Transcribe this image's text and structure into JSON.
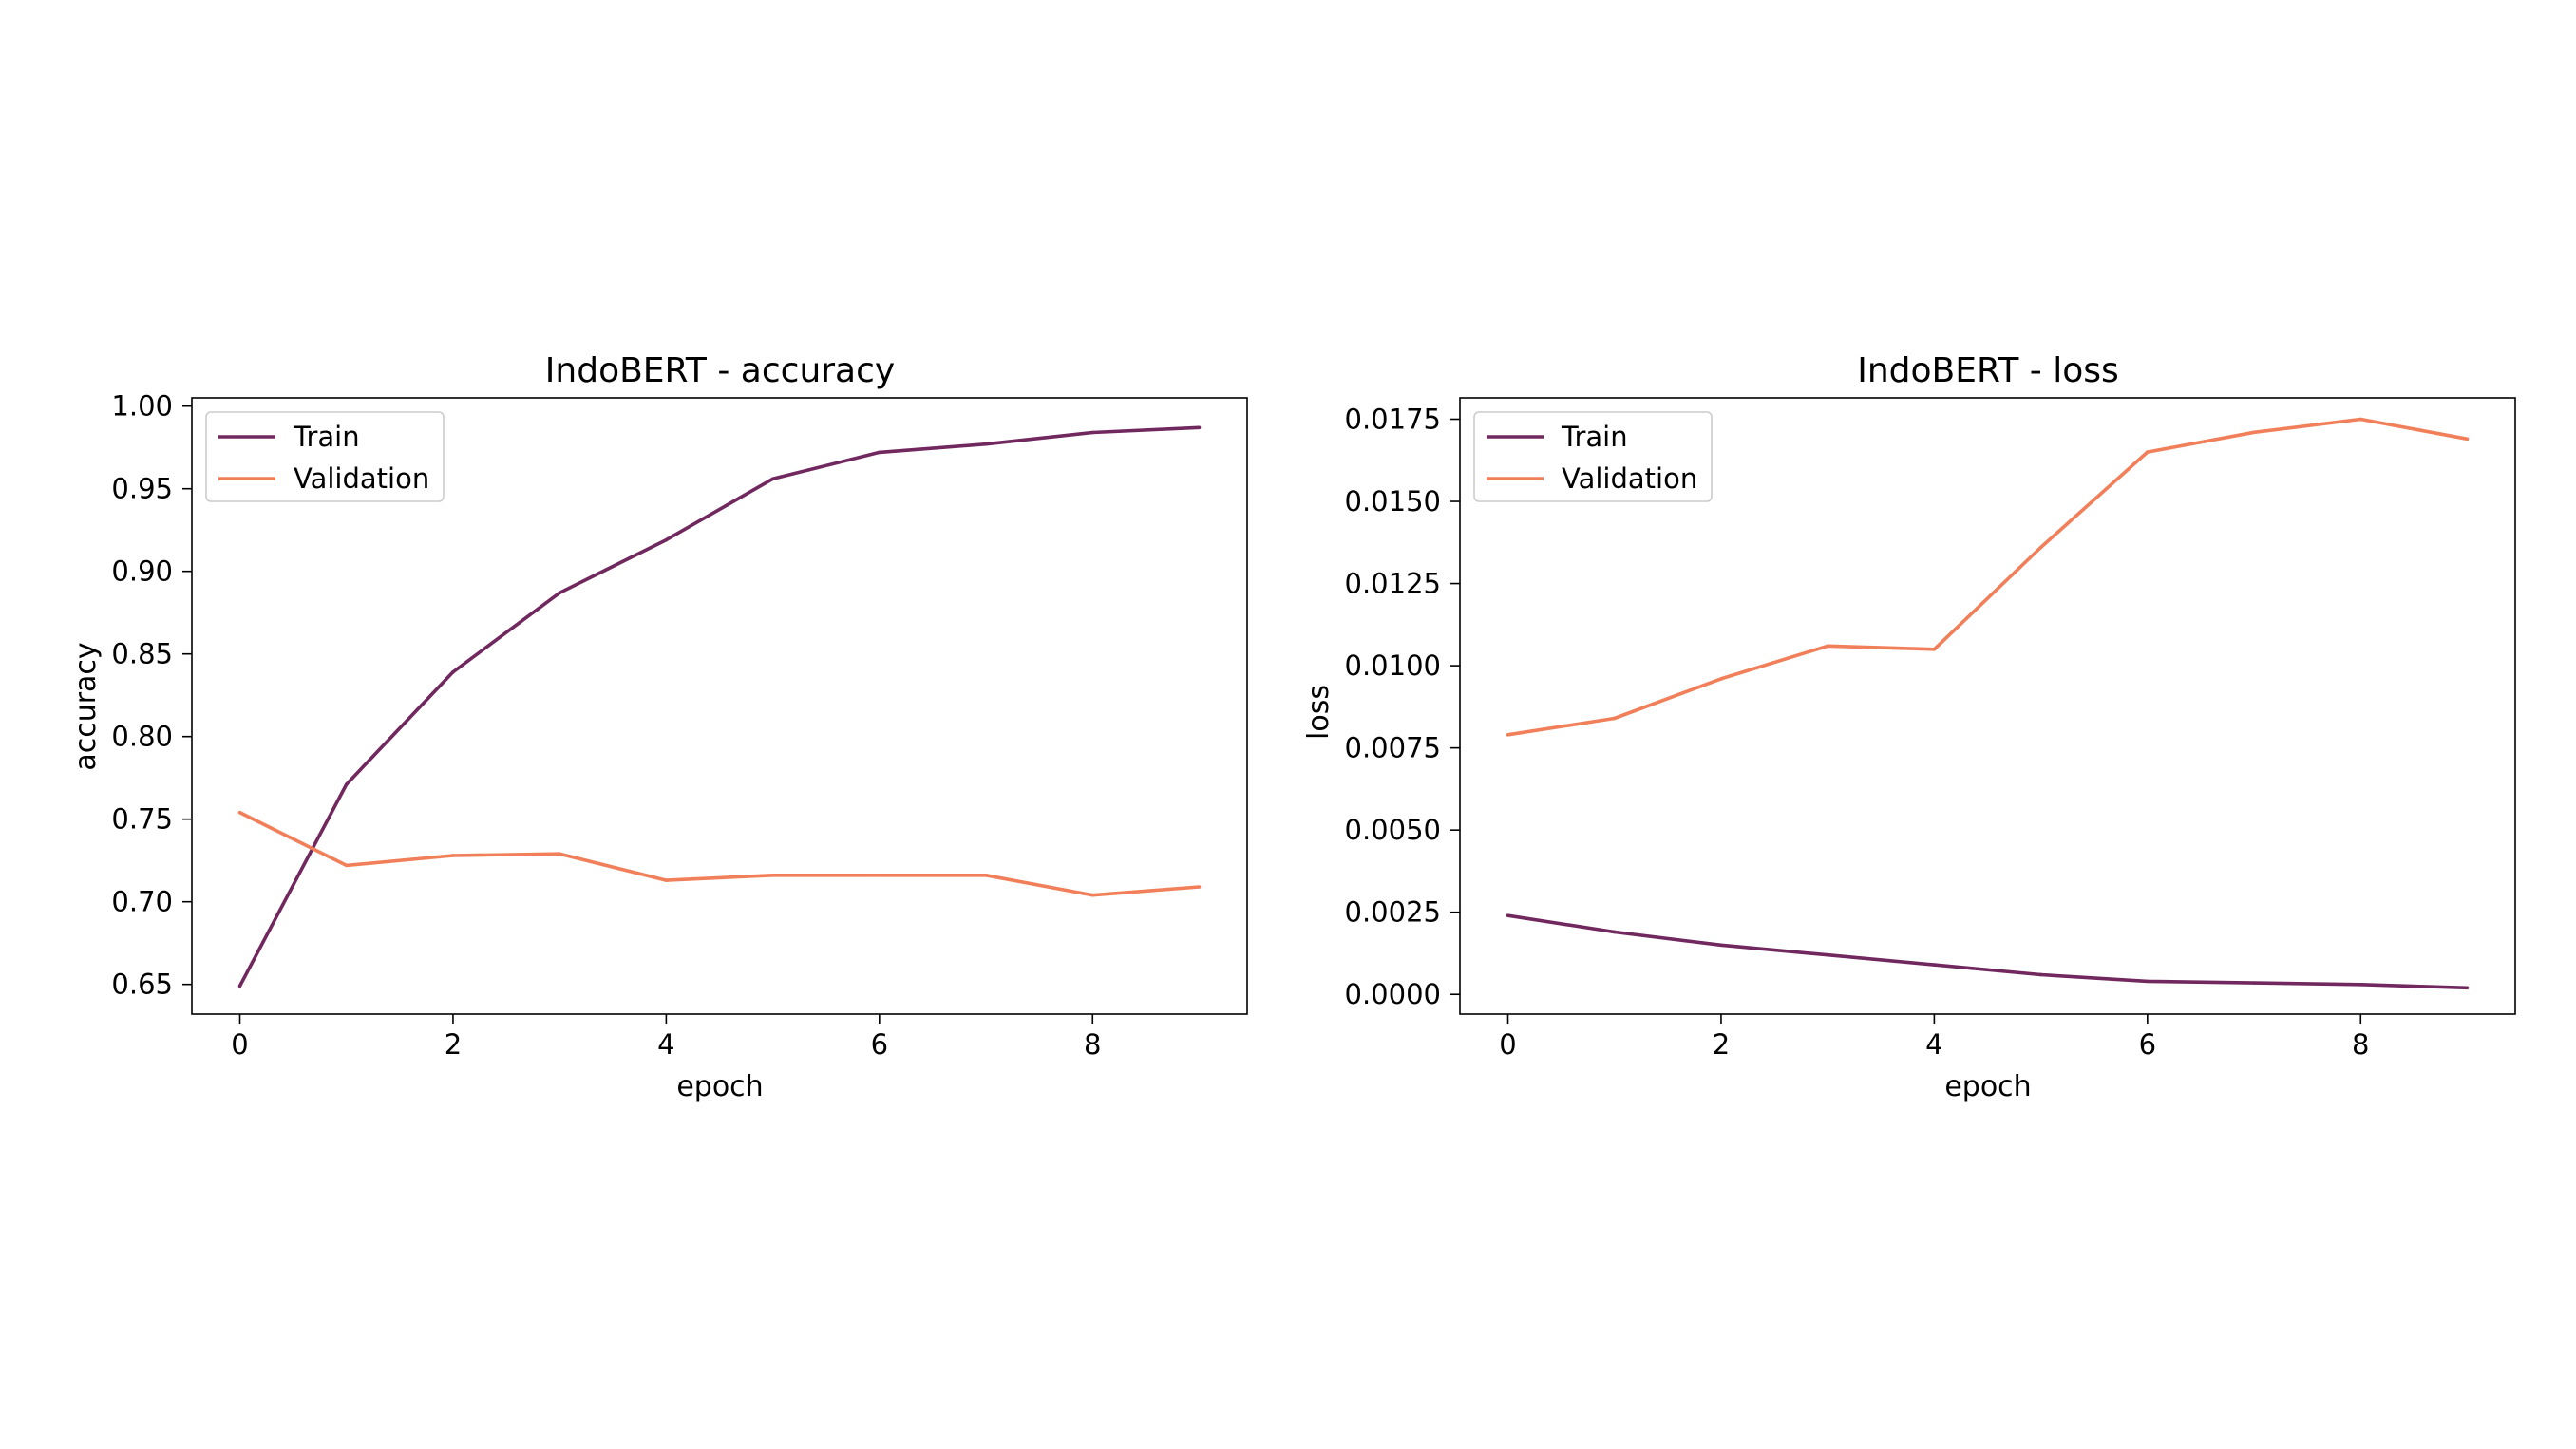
{
  "chart_data": [
    {
      "type": "line",
      "title": "IndoBERT - accuracy",
      "xlabel": "epoch",
      "ylabel": "accuracy",
      "x": [
        0,
        1,
        2,
        3,
        4,
        5,
        6,
        7,
        8,
        9
      ],
      "xlim": [
        -0.45,
        9.45
      ],
      "ylim": [
        0.632,
        1.005
      ],
      "xticks": [
        0,
        2,
        4,
        6,
        8
      ],
      "yticks": [
        0.65,
        0.7,
        0.75,
        0.8,
        0.85,
        0.9,
        0.95,
        1.0
      ],
      "xtick_labels": [
        "0",
        "2",
        "4",
        "6",
        "8"
      ],
      "ytick_labels": [
        "0.65",
        "0.70",
        "0.75",
        "0.80",
        "0.85",
        "0.90",
        "0.95",
        "1.00"
      ],
      "grid": false,
      "legend_position": "upper-left",
      "series": [
        {
          "name": "Train",
          "color": "#70285e",
          "values": [
            0.649,
            0.771,
            0.839,
            0.887,
            0.919,
            0.956,
            0.972,
            0.977,
            0.984,
            0.987
          ]
        },
        {
          "name": "Validation",
          "color": "#f07f5a",
          "values": [
            0.754,
            0.722,
            0.728,
            0.729,
            0.713,
            0.716,
            0.716,
            0.716,
            0.704,
            0.709
          ]
        }
      ]
    },
    {
      "type": "line",
      "title": "IndoBERT - loss",
      "xlabel": "epoch",
      "ylabel": "loss",
      "x": [
        0,
        1,
        2,
        3,
        4,
        5,
        6,
        7,
        8,
        9
      ],
      "xlim": [
        -0.45,
        9.45
      ],
      "ylim": [
        -0.0006,
        0.01815
      ],
      "xticks": [
        0,
        2,
        4,
        6,
        8
      ],
      "yticks": [
        0.0,
        0.0025,
        0.005,
        0.0075,
        0.01,
        0.0125,
        0.015,
        0.0175
      ],
      "xtick_labels": [
        "0",
        "2",
        "4",
        "6",
        "8"
      ],
      "ytick_labels": [
        "0.0000",
        "0.0025",
        "0.0050",
        "0.0075",
        "0.0100",
        "0.0125",
        "0.0150",
        "0.0175"
      ],
      "grid": false,
      "legend_position": "upper-left",
      "series": [
        {
          "name": "Train",
          "color": "#70285e",
          "values": [
            0.0024,
            0.0019,
            0.0015,
            0.0012,
            0.0009,
            0.0006,
            0.0004,
            0.00035,
            0.0003,
            0.0002
          ]
        },
        {
          "name": "Validation",
          "color": "#f07f5a",
          "values": [
            0.0079,
            0.0084,
            0.0096,
            0.0106,
            0.0105,
            0.0136,
            0.0165,
            0.0171,
            0.0175,
            0.0169
          ]
        }
      ]
    }
  ]
}
